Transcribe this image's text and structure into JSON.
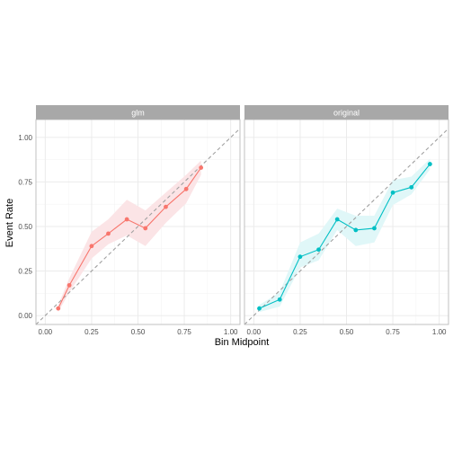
{
  "chart_data": {
    "type": "line",
    "xlabel": "Bin Midpoint",
    "ylabel": "Event Rate",
    "xlim": [
      -0.05,
      1.05
    ],
    "ylim": [
      -0.05,
      1.1
    ],
    "x_ticks": [
      0.0,
      0.25,
      0.5,
      0.75,
      1.0
    ],
    "x_tick_labels": [
      "0.00",
      "0.25",
      "0.50",
      "0.75",
      "1.00"
    ],
    "y_ticks": [
      0.0,
      0.25,
      0.5,
      0.75,
      1.0
    ],
    "y_tick_labels": [
      "0.00",
      "0.25",
      "0.50",
      "0.75",
      "1.00"
    ],
    "reference_line": "y = x (dashed, grey)",
    "grid": true,
    "panels": [
      {
        "label": "glm",
        "color": "#F8766D",
        "band_color": "#FBE4E6",
        "x": [
          0.07,
          0.13,
          0.25,
          0.34,
          0.44,
          0.54,
          0.65,
          0.76,
          0.84
        ],
        "y": [
          0.04,
          0.17,
          0.39,
          0.46,
          0.54,
          0.49,
          0.61,
          0.71,
          0.83
        ],
        "lower": [
          0.02,
          0.13,
          0.32,
          0.4,
          0.45,
          0.39,
          0.52,
          0.63,
          0.79
        ],
        "upper": [
          0.06,
          0.21,
          0.47,
          0.54,
          0.65,
          0.59,
          0.69,
          0.79,
          0.87
        ]
      },
      {
        "label": "original",
        "color": "#00BFC4",
        "band_color": "#E0F7F8",
        "x": [
          0.03,
          0.14,
          0.25,
          0.35,
          0.45,
          0.55,
          0.65,
          0.75,
          0.85,
          0.95
        ],
        "y": [
          0.04,
          0.09,
          0.33,
          0.37,
          0.54,
          0.48,
          0.49,
          0.69,
          0.72,
          0.85
        ],
        "lower": [
          0.02,
          0.05,
          0.27,
          0.31,
          0.48,
          0.39,
          0.41,
          0.62,
          0.68,
          0.82
        ],
        "upper": [
          0.06,
          0.13,
          0.41,
          0.46,
          0.6,
          0.56,
          0.56,
          0.76,
          0.78,
          0.88
        ]
      }
    ]
  }
}
